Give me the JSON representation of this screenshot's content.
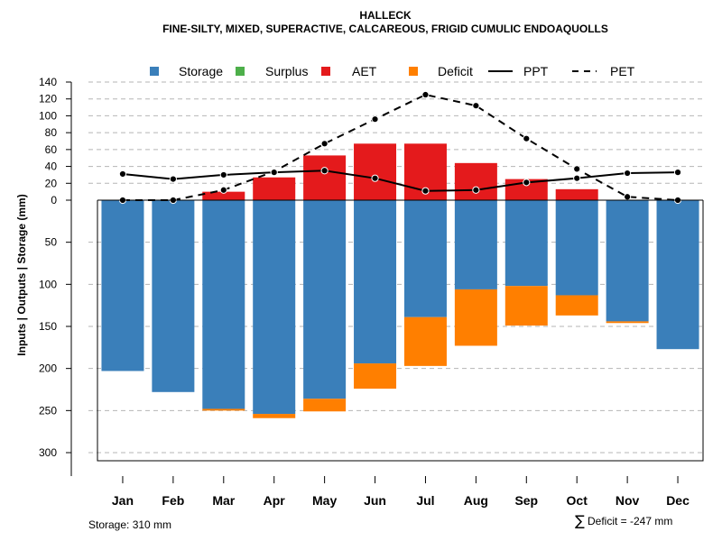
{
  "chart_data": {
    "type": "bar",
    "title": "HALLECK",
    "subtitle": "FINE-SILTY, MIXED, SUPERACTIVE, CALCAREOUS, FRIGID CUMULIC ENDOAQUOLLS",
    "ylabel": "Inputs | Outputs | Storage    (mm)",
    "categories": [
      "Jan",
      "Feb",
      "Mar",
      "Apr",
      "May",
      "Jun",
      "Jul",
      "Aug",
      "Sep",
      "Oct",
      "Nov",
      "Dec"
    ],
    "upper_axis": {
      "range": [
        0,
        140
      ],
      "ticks": [
        "140",
        "120",
        "100",
        "80",
        "60",
        "40",
        "20",
        "0"
      ]
    },
    "lower_axis": {
      "range": [
        0,
        310
      ],
      "ticks": [
        "50",
        "100",
        "150",
        "200",
        "250",
        "300"
      ]
    },
    "series": [
      {
        "name": "Storage",
        "kind": "bar-down",
        "color": "#3A7FBA",
        "values": [
          203,
          228,
          248,
          254,
          236,
          194,
          139,
          106,
          102,
          113,
          144,
          177
        ]
      },
      {
        "name": "Surplus",
        "kind": "bar-up",
        "color": "#4DAF4A",
        "values": [
          0,
          0,
          0,
          0,
          0,
          0,
          0,
          0,
          0,
          0,
          0,
          0
        ]
      },
      {
        "name": "AET",
        "kind": "bar-up",
        "color": "#E41A1C",
        "values": [
          0,
          0,
          10,
          27,
          53,
          67,
          67,
          44,
          25,
          13,
          0,
          0
        ]
      },
      {
        "name": "Deficit",
        "kind": "bar-down-stacked",
        "color": "#FF7F00",
        "values": [
          0,
          0,
          2,
          5,
          15,
          30,
          58,
          67,
          47,
          24,
          2,
          0
        ]
      },
      {
        "name": "PPT",
        "kind": "line",
        "style": "solid",
        "color": "#000000",
        "values": [
          31,
          25,
          30,
          33,
          35,
          26,
          11,
          12,
          21,
          26,
          32,
          33
        ]
      },
      {
        "name": "PET",
        "kind": "line",
        "style": "dashed",
        "color": "#000000",
        "values": [
          0,
          0,
          12,
          34,
          67,
          96,
          125,
          112,
          73,
          37,
          4,
          0
        ]
      }
    ],
    "annotations": {
      "storage": "Storage: 310 mm",
      "deficit_symbol": "∑",
      "deficit": "Deficit = -247 mm"
    }
  }
}
